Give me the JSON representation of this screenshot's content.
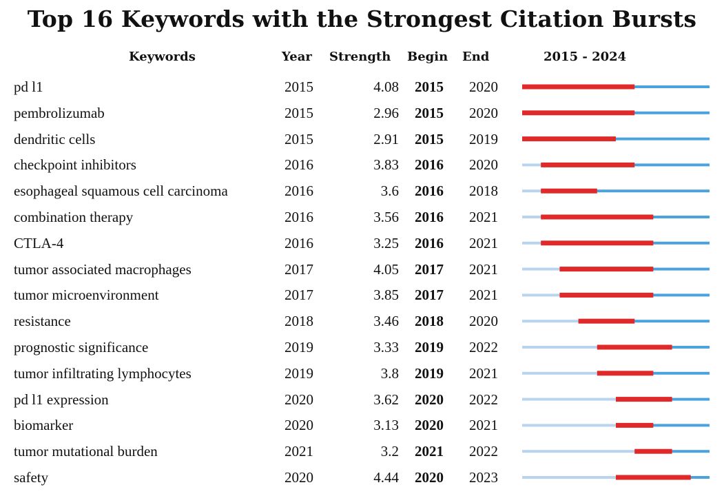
{
  "chart_data": {
    "type": "table",
    "title": "Top 16 Keywords with the Strongest Citation Bursts",
    "headers": {
      "keywords": "Keywords",
      "year": "Year",
      "strength": "Strength",
      "begin": "Begin",
      "end": "End",
      "range": "2015 - 2024"
    },
    "range_start": 2015,
    "range_end": 2024,
    "colors": {
      "burst": "#e02a2a",
      "active": "#4aa3df",
      "before": "#b9d4ee"
    },
    "rows": [
      {
        "keyword": "pd l1",
        "year": "2015",
        "strength": "4.08",
        "begin": "2015",
        "end": "2020"
      },
      {
        "keyword": "pembrolizumab",
        "year": "2015",
        "strength": "2.96",
        "begin": "2015",
        "end": "2020"
      },
      {
        "keyword": "dendritic cells",
        "year": "2015",
        "strength": "2.91",
        "begin": "2015",
        "end": "2019"
      },
      {
        "keyword": "checkpoint inhibitors",
        "year": "2016",
        "strength": "3.83",
        "begin": "2016",
        "end": "2020"
      },
      {
        "keyword": "esophageal squamous cell carcinoma",
        "year": "2016",
        "strength": "3.6",
        "begin": "2016",
        "end": "2018"
      },
      {
        "keyword": "combination therapy",
        "year": "2016",
        "strength": "3.56",
        "begin": "2016",
        "end": "2021"
      },
      {
        "keyword": "CTLA-4",
        "year": "2016",
        "strength": "3.25",
        "begin": "2016",
        "end": "2021"
      },
      {
        "keyword": "tumor associated macrophages",
        "year": "2017",
        "strength": "4.05",
        "begin": "2017",
        "end": "2021"
      },
      {
        "keyword": "tumor microenvironment",
        "year": "2017",
        "strength": "3.85",
        "begin": "2017",
        "end": "2021"
      },
      {
        "keyword": "resistance",
        "year": "2018",
        "strength": "3.46",
        "begin": "2018",
        "end": "2020"
      },
      {
        "keyword": "prognostic significance",
        "year": "2019",
        "strength": "3.33",
        "begin": "2019",
        "end": "2022"
      },
      {
        "keyword": "tumor infiltrating lymphocytes",
        "year": "2019",
        "strength": "3.8",
        "begin": "2019",
        "end": "2021"
      },
      {
        "keyword": "pd l1 expression",
        "year": "2020",
        "strength": "3.62",
        "begin": "2020",
        "end": "2022"
      },
      {
        "keyword": "biomarker",
        "year": "2020",
        "strength": "3.13",
        "begin": "2020",
        "end": "2021"
      },
      {
        "keyword": "tumor mutational burden",
        "year": "2021",
        "strength": "3.2",
        "begin": "2021",
        "end": "2022"
      },
      {
        "keyword": "safety",
        "year": "2020",
        "strength": "4.44",
        "begin": "2020",
        "end": "2023"
      }
    ]
  }
}
